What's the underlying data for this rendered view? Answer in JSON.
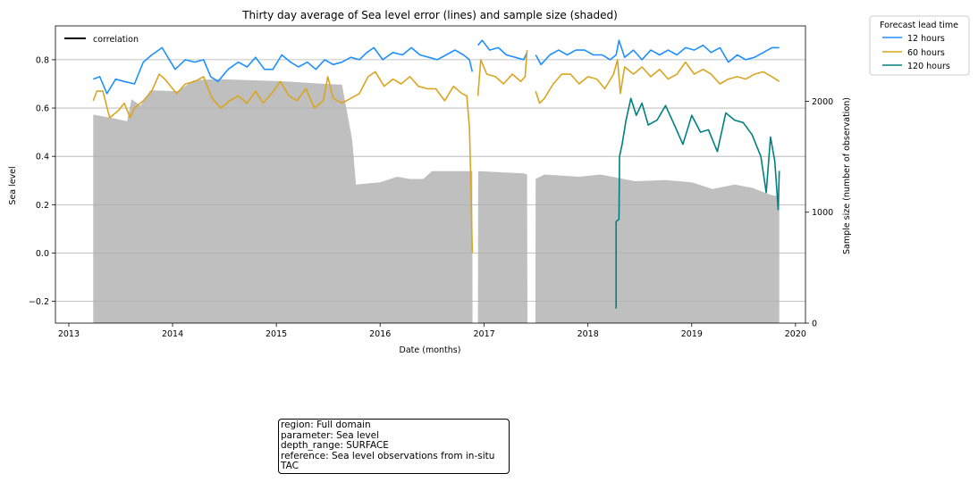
{
  "chart_data": {
    "type": "line",
    "title": "Thirty day average of Sea level error (lines) and sample size (shaded)",
    "xlabel": "Date (months)",
    "ylabel": "Sea level",
    "y2label": "Sample size (number of observation)",
    "x_range": [
      "2012-11-15",
      "2020-02-05"
    ],
    "ylim": [
      -0.29,
      0.94
    ],
    "y2lim": [
      0,
      2680
    ],
    "x_ticks": [
      "2013",
      "2014",
      "2015",
      "2016",
      "2017",
      "2018",
      "2019",
      "2020"
    ],
    "y_ticks": [
      -0.2,
      0.0,
      0.2,
      0.4,
      0.6,
      0.8
    ],
    "y_tick_labels": [
      "−0.2",
      "0.0",
      "0.2",
      "0.4",
      "0.6",
      "0.8"
    ],
    "y2_ticks": [
      0,
      1000,
      2000
    ],
    "grid": "horizontal",
    "legend_top_left": {
      "entries": [
        {
          "name": "correlation",
          "color": "#000000"
        }
      ]
    },
    "legend": {
      "title": "Forecast lead time",
      "placement": "outside-top-right",
      "entries": [
        {
          "name": "12 hours",
          "color": "#1e90ff"
        },
        {
          "name": "60 hours",
          "color": "#daa520"
        },
        {
          "name": "120 hours",
          "color": "#008080"
        }
      ]
    },
    "sample_size": {
      "color": "#bfbfbf",
      "points": [
        [
          "2013-03-28",
          1880
        ],
        [
          "2013-06-01",
          1850
        ],
        [
          "2013-07-25",
          1820
        ],
        [
          "2013-08-10",
          2020
        ],
        [
          "2013-09-10",
          1960
        ],
        [
          "2013-10-15",
          2100
        ],
        [
          "2014-01-20",
          2090
        ],
        [
          "2014-03-15",
          2190
        ],
        [
          "2014-06-01",
          2200
        ],
        [
          "2015-02-01",
          2180
        ],
        [
          "2015-06-01",
          2160
        ],
        [
          "2015-08-20",
          2150
        ],
        [
          "2015-09-25",
          1650
        ],
        [
          "2015-10-08",
          1250
        ],
        [
          "2016-01-01",
          1270
        ],
        [
          "2016-03-01",
          1320
        ],
        [
          "2016-04-15",
          1300
        ],
        [
          "2016-06-01",
          1300
        ],
        [
          "2016-07-01",
          1370
        ],
        [
          "2016-11-20",
          1370
        ],
        [
          "2016-11-21",
          0
        ],
        [
          "2016-12-10",
          0
        ],
        [
          "2016-12-11",
          1370
        ],
        [
          "2017-05-20",
          1350
        ],
        [
          "2017-06-01",
          1340
        ],
        [
          "2017-06-02",
          0
        ],
        [
          "2017-06-30",
          0
        ],
        [
          "2017-07-01",
          1300
        ],
        [
          "2017-08-01",
          1340
        ],
        [
          "2017-12-01",
          1320
        ],
        [
          "2018-02-15",
          1340
        ],
        [
          "2018-06-15",
          1280
        ],
        [
          "2018-10-01",
          1290
        ],
        [
          "2019-01-01",
          1270
        ],
        [
          "2019-03-15",
          1210
        ],
        [
          "2019-06-01",
          1250
        ],
        [
          "2019-08-01",
          1220
        ],
        [
          "2019-10-01",
          1160
        ],
        [
          "2019-11-05",
          1140
        ]
      ]
    },
    "series": [
      {
        "name": "12 hours",
        "color": "#1e90ff",
        "segments": [
          [
            [
              "2013-03-28",
              0.72
            ],
            [
              "2013-04-20",
              0.73
            ],
            [
              "2013-05-15",
              0.66
            ],
            [
              "2013-06-15",
              0.72
            ],
            [
              "2013-07-15",
              0.71
            ],
            [
              "2013-08-20",
              0.7
            ],
            [
              "2013-09-20",
              0.79
            ],
            [
              "2013-10-20",
              0.82
            ],
            [
              "2013-11-25",
              0.85
            ],
            [
              "2014-01-10",
              0.76
            ],
            [
              "2014-02-15",
              0.8
            ],
            [
              "2014-03-20",
              0.79
            ],
            [
              "2014-04-20",
              0.8
            ],
            [
              "2014-05-15",
              0.73
            ],
            [
              "2014-06-10",
              0.71
            ],
            [
              "2014-07-15",
              0.76
            ],
            [
              "2014-08-20",
              0.79
            ],
            [
              "2014-09-20",
              0.77
            ],
            [
              "2014-10-20",
              0.81
            ],
            [
              "2014-11-20",
              0.76
            ],
            [
              "2014-12-20",
              0.76
            ],
            [
              "2015-01-20",
              0.82
            ],
            [
              "2015-02-20",
              0.79
            ],
            [
              "2015-03-20",
              0.77
            ],
            [
              "2015-04-20",
              0.79
            ],
            [
              "2015-05-20",
              0.76
            ],
            [
              "2015-06-20",
              0.8
            ],
            [
              "2015-07-20",
              0.78
            ],
            [
              "2015-08-20",
              0.79
            ],
            [
              "2015-09-20",
              0.81
            ],
            [
              "2015-10-20",
              0.8
            ],
            [
              "2015-11-15",
              0.83
            ],
            [
              "2015-12-10",
              0.85
            ],
            [
              "2016-01-10",
              0.8
            ],
            [
              "2016-02-15",
              0.83
            ],
            [
              "2016-03-20",
              0.82
            ],
            [
              "2016-04-20",
              0.85
            ],
            [
              "2016-05-20",
              0.82
            ],
            [
              "2016-06-20",
              0.81
            ],
            [
              "2016-07-20",
              0.8
            ],
            [
              "2016-08-20",
              0.82
            ],
            [
              "2016-09-20",
              0.84
            ],
            [
              "2016-10-20",
              0.82
            ],
            [
              "2016-11-10",
              0.8
            ],
            [
              "2016-11-20",
              0.75
            ]
          ],
          [
            [
              "2016-12-10",
              0.86
            ],
            [
              "2016-12-25",
              0.88
            ],
            [
              "2017-01-20",
              0.84
            ],
            [
              "2017-02-20",
              0.85
            ],
            [
              "2017-03-20",
              0.82
            ],
            [
              "2017-04-20",
              0.81
            ],
            [
              "2017-05-20",
              0.8
            ],
            [
              "2017-06-01",
              0.83
            ]
          ],
          [
            [
              "2017-07-01",
              0.82
            ],
            [
              "2017-07-20",
              0.78
            ],
            [
              "2017-08-20",
              0.82
            ],
            [
              "2017-09-20",
              0.84
            ],
            [
              "2017-10-20",
              0.82
            ],
            [
              "2017-11-20",
              0.84
            ],
            [
              "2017-12-20",
              0.84
            ],
            [
              "2018-01-20",
              0.82
            ],
            [
              "2018-02-20",
              0.82
            ],
            [
              "2018-03-20",
              0.8
            ],
            [
              "2018-04-10",
              0.82
            ],
            [
              "2018-04-20",
              0.88
            ],
            [
              "2018-05-10",
              0.81
            ],
            [
              "2018-06-10",
              0.84
            ],
            [
              "2018-07-10",
              0.8
            ],
            [
              "2018-08-10",
              0.84
            ],
            [
              "2018-09-10",
              0.82
            ],
            [
              "2018-10-10",
              0.84
            ],
            [
              "2018-11-10",
              0.82
            ],
            [
              "2018-12-10",
              0.85
            ],
            [
              "2019-01-10",
              0.84
            ],
            [
              "2019-02-10",
              0.86
            ],
            [
              "2019-03-10",
              0.83
            ],
            [
              "2019-04-10",
              0.85
            ],
            [
              "2019-05-10",
              0.79
            ],
            [
              "2019-06-10",
              0.82
            ],
            [
              "2019-07-10",
              0.8
            ],
            [
              "2019-08-10",
              0.81
            ],
            [
              "2019-09-10",
              0.83
            ],
            [
              "2019-10-10",
              0.85
            ],
            [
              "2019-11-05",
              0.85
            ]
          ]
        ]
      },
      {
        "name": "60 hours",
        "color": "#daa520",
        "segments": [
          [
            [
              "2013-03-28",
              0.63
            ],
            [
              "2013-04-10",
              0.67
            ],
            [
              "2013-05-01",
              0.67
            ],
            [
              "2013-05-25",
              0.56
            ],
            [
              "2013-06-25",
              0.59
            ],
            [
              "2013-07-15",
              0.62
            ],
            [
              "2013-08-05",
              0.56
            ],
            [
              "2013-08-20",
              0.6
            ],
            [
              "2013-09-20",
              0.63
            ],
            [
              "2013-10-20",
              0.67
            ],
            [
              "2013-11-15",
              0.74
            ],
            [
              "2013-12-05",
              0.72
            ],
            [
              "2014-01-15",
              0.66
            ],
            [
              "2014-02-15",
              0.7
            ],
            [
              "2014-03-20",
              0.71
            ],
            [
              "2014-04-20",
              0.73
            ],
            [
              "2014-05-20",
              0.64
            ],
            [
              "2014-06-20",
              0.6
            ],
            [
              "2014-07-20",
              0.63
            ],
            [
              "2014-08-20",
              0.65
            ],
            [
              "2014-09-20",
              0.62
            ],
            [
              "2014-10-20",
              0.67
            ],
            [
              "2014-11-15",
              0.62
            ],
            [
              "2014-12-15",
              0.66
            ],
            [
              "2015-01-15",
              0.71
            ],
            [
              "2015-02-15",
              0.65
            ],
            [
              "2015-03-15",
              0.63
            ],
            [
              "2015-04-15",
              0.68
            ],
            [
              "2015-05-15",
              0.6
            ],
            [
              "2015-06-15",
              0.63
            ],
            [
              "2015-07-01",
              0.73
            ],
            [
              "2015-07-20",
              0.64
            ],
            [
              "2015-08-20",
              0.62
            ],
            [
              "2015-09-20",
              0.64
            ],
            [
              "2015-10-20",
              0.66
            ],
            [
              "2015-11-20",
              0.73
            ],
            [
              "2015-12-15",
              0.75
            ],
            [
              "2016-01-15",
              0.69
            ],
            [
              "2016-02-15",
              0.72
            ],
            [
              "2016-03-15",
              0.7
            ],
            [
              "2016-04-15",
              0.73
            ],
            [
              "2016-05-15",
              0.69
            ],
            [
              "2016-06-15",
              0.68
            ],
            [
              "2016-07-15",
              0.68
            ],
            [
              "2016-08-15",
              0.63
            ],
            [
              "2016-09-15",
              0.69
            ],
            [
              "2016-10-15",
              0.66
            ],
            [
              "2016-11-01",
              0.65
            ],
            [
              "2016-11-10",
              0.52
            ],
            [
              "2016-11-15",
              0.3
            ],
            [
              "2016-11-20",
              0.0
            ]
          ],
          [
            [
              "2016-12-10",
              0.65
            ],
            [
              "2016-12-20",
              0.8
            ],
            [
              "2017-01-10",
              0.74
            ],
            [
              "2017-02-10",
              0.73
            ],
            [
              "2017-03-10",
              0.7
            ],
            [
              "2017-04-10",
              0.74
            ],
            [
              "2017-05-10",
              0.71
            ],
            [
              "2017-05-25",
              0.73
            ],
            [
              "2017-06-01",
              0.84
            ]
          ],
          [
            [
              "2017-07-01",
              0.67
            ],
            [
              "2017-07-15",
              0.62
            ],
            [
              "2017-08-01",
              0.64
            ],
            [
              "2017-09-01",
              0.7
            ],
            [
              "2017-10-01",
              0.74
            ],
            [
              "2017-11-01",
              0.74
            ],
            [
              "2017-12-01",
              0.7
            ],
            [
              "2018-01-01",
              0.73
            ],
            [
              "2018-02-01",
              0.72
            ],
            [
              "2018-03-01",
              0.68
            ],
            [
              "2018-04-01",
              0.74
            ],
            [
              "2018-04-15",
              0.8
            ],
            [
              "2018-04-25",
              0.66
            ],
            [
              "2018-05-10",
              0.77
            ],
            [
              "2018-06-10",
              0.74
            ],
            [
              "2018-07-10",
              0.77
            ],
            [
              "2018-08-10",
              0.73
            ],
            [
              "2018-09-10",
              0.76
            ],
            [
              "2018-10-10",
              0.72
            ],
            [
              "2018-11-10",
              0.74
            ],
            [
              "2018-12-10",
              0.79
            ],
            [
              "2019-01-10",
              0.74
            ],
            [
              "2019-02-10",
              0.76
            ],
            [
              "2019-03-10",
              0.74
            ],
            [
              "2019-04-10",
              0.7
            ],
            [
              "2019-05-10",
              0.72
            ],
            [
              "2019-06-10",
              0.73
            ],
            [
              "2019-07-10",
              0.72
            ],
            [
              "2019-08-10",
              0.74
            ],
            [
              "2019-09-10",
              0.75
            ],
            [
              "2019-10-10",
              0.73
            ],
            [
              "2019-11-05",
              0.71
            ]
          ]
        ]
      },
      {
        "name": "120 hours",
        "color": "#008080",
        "segments": [
          [
            [
              "2018-04-10",
              -0.23
            ],
            [
              "2018-04-10",
              0.13
            ],
            [
              "2018-04-20",
              0.14
            ],
            [
              "2018-04-22",
              0.4
            ],
            [
              "2018-05-01",
              0.45
            ],
            [
              "2018-05-15",
              0.55
            ],
            [
              "2018-06-01",
              0.64
            ],
            [
              "2018-06-20",
              0.57
            ],
            [
              "2018-07-10",
              0.62
            ],
            [
              "2018-08-01",
              0.53
            ],
            [
              "2018-09-01",
              0.55
            ],
            [
              "2018-10-01",
              0.61
            ],
            [
              "2018-11-01",
              0.53
            ],
            [
              "2018-12-01",
              0.45
            ],
            [
              "2019-01-01",
              0.57
            ],
            [
              "2019-02-01",
              0.5
            ],
            [
              "2019-03-01",
              0.51
            ],
            [
              "2019-04-01",
              0.42
            ],
            [
              "2019-05-01",
              0.58
            ],
            [
              "2019-06-01",
              0.55
            ],
            [
              "2019-07-01",
              0.54
            ],
            [
              "2019-08-01",
              0.49
            ],
            [
              "2019-09-01",
              0.4
            ],
            [
              "2019-09-20",
              0.25
            ],
            [
              "2019-10-05",
              0.48
            ],
            [
              "2019-10-20",
              0.38
            ],
            [
              "2019-11-01",
              0.18
            ],
            [
              "2019-11-05",
              0.34
            ]
          ]
        ]
      }
    ]
  },
  "info_box": {
    "lines": [
      "region: Full domain",
      "parameter: Sea level",
      "depth_range: SURFACE",
      "reference: Sea level observations from in-situ",
      "TAC"
    ]
  }
}
